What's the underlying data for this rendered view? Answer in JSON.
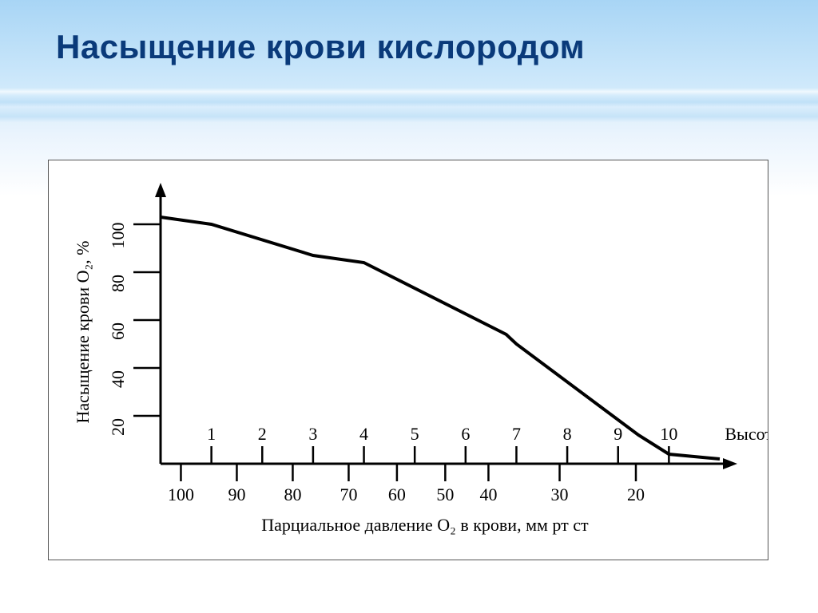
{
  "title": {
    "text": "Насыщение крови кислородом",
    "color": "#0a3a7a",
    "fontsize": 42,
    "weight": 700
  },
  "chart": {
    "type": "line",
    "background_color": "#ffffff",
    "frame_border_color": "#555555",
    "axis_color": "#000000",
    "curve_color": "#000000",
    "curve_width": 4,
    "y_axis": {
      "label": "Насыщение крови O₂, %",
      "ticks": [
        20,
        40,
        60,
        80,
        100
      ],
      "tick_labels": [
        "20",
        "40",
        "60",
        "80",
        "100"
      ],
      "limits": [
        0,
        110
      ],
      "label_fontsize": 22,
      "tick_fontsize": 22
    },
    "x_top": {
      "label": "Высота, км",
      "ticks": [
        1,
        2,
        3,
        4,
        5,
        6,
        7,
        8,
        9,
        10
      ],
      "tick_labels": [
        "1",
        "2",
        "3",
        "4",
        "5",
        "6",
        "7",
        "8",
        "9",
        "10"
      ],
      "label_fontsize": 22,
      "tick_fontsize": 22
    },
    "x_bottom": {
      "label": "Парциальное давление O₂ в крови, мм рт ст",
      "ticks": [
        100,
        90,
        80,
        70,
        60,
        50,
        40,
        30,
        20
      ],
      "tick_labels": [
        "100",
        "90",
        "80",
        "70",
        "60",
        "50",
        "40",
        "30",
        "20"
      ],
      "label_fontsize": 22,
      "tick_fontsize": 22
    },
    "series": {
      "altitude_km": [
        0.0,
        1.0,
        3.0,
        4.0,
        6.8,
        7.0,
        9.4,
        10.0,
        11.0
      ],
      "saturation_pct": [
        103,
        100,
        87,
        84,
        54,
        50,
        12,
        4,
        2
      ]
    },
    "text_color": "#000000"
  }
}
